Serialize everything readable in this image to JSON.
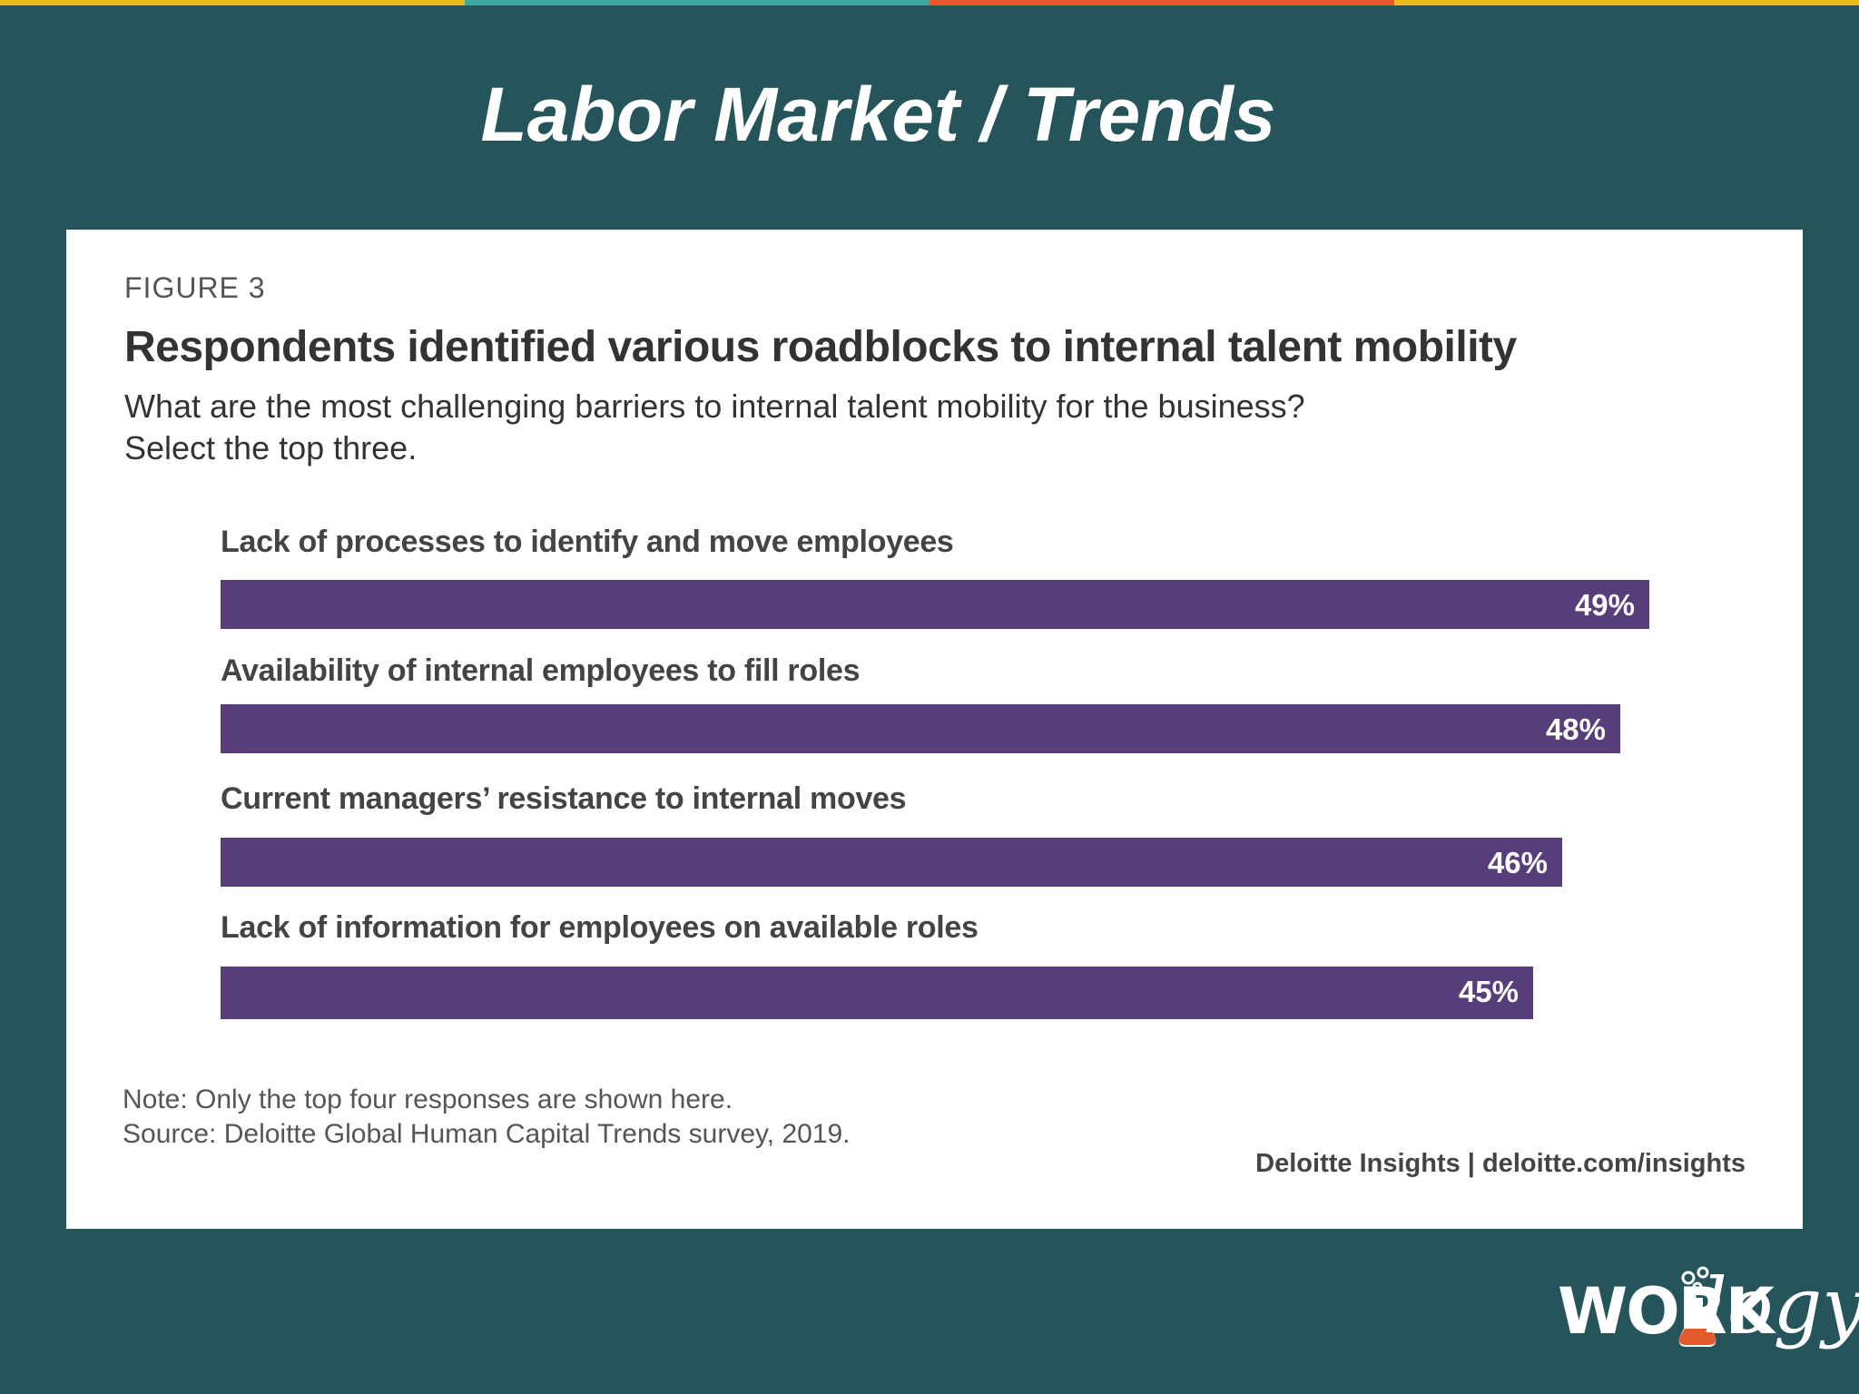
{
  "slide": {
    "title": "Labor Market / Trends",
    "stripe_colors": [
      "#e9b92e",
      "#3ea7a0",
      "#e35b2d",
      "#e9b92e"
    ],
    "background": "#25555b"
  },
  "figure": {
    "label": "FIGURE 3",
    "title": "Respondents identified various roadblocks to internal talent mobility",
    "subtitle_line1": "What are the most challenging barriers to internal talent mobility for the business?",
    "subtitle_line2": "Select the top three.",
    "note": "Note: Only the top four responses are shown here.",
    "source": "Source: Deloitte Global Human Capital Trends survey, 2019.",
    "credit": "Deloitte Insights | deloitte.com/insights"
  },
  "chart_data": {
    "type": "bar",
    "orientation": "horizontal",
    "categories": [
      "Lack of processes to identify and move employees",
      "Availability of internal employees to fill roles",
      "Current managers’ resistance to internal moves",
      "Lack of information for employees on available roles"
    ],
    "values": [
      49,
      48,
      46,
      45
    ],
    "value_labels": [
      "49%",
      "48%",
      "46%",
      "45%"
    ],
    "bar_color": "#573d7a",
    "grid": false
  },
  "logo": {
    "work": "WORK",
    "logy": "logy",
    "flask_icon": "flask-icon"
  }
}
